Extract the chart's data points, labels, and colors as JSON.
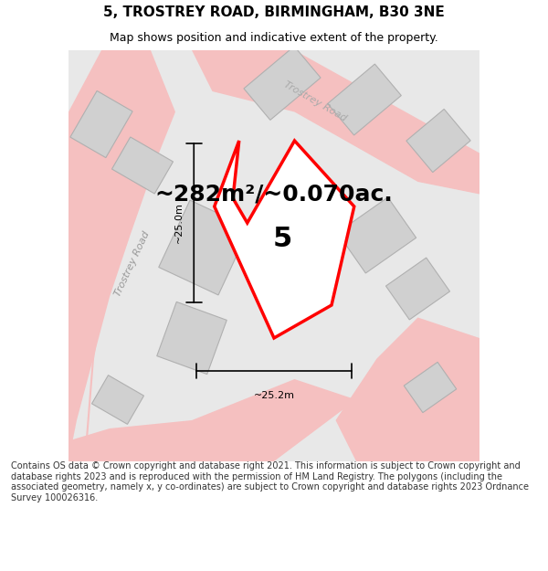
{
  "title_line1": "5, TROSTREY ROAD, BIRMINGHAM, B30 3NE",
  "title_line2": "Map shows position and indicative extent of the property.",
  "area_text": "~282m²/~0.070ac.",
  "property_number": "5",
  "dim_vertical": "~25.0m",
  "dim_horizontal": "~25.2m",
  "road_label_left": "Trostrey Road",
  "road_label_top": "Trostrey Road",
  "footer_text": "Contains OS data © Crown copyright and database right 2021. This information is subject to Crown copyright and database rights 2023 and is reproduced with the permission of HM Land Registry. The polygons (including the associated geometry, namely x, y co-ordinates) are subject to Crown copyright and database rights 2023 Ordnance Survey 100026316.",
  "bg_color": "#e8e8e8",
  "road_color": "#f5c0c0",
  "building_color": "#d0d0d0",
  "building_outline": "#b0b0b0",
  "property_outline": "#ff0000",
  "property_fill": "#ffffff",
  "dim_line_color": "#000000",
  "title_color": "#000000",
  "footer_color": "#333333"
}
